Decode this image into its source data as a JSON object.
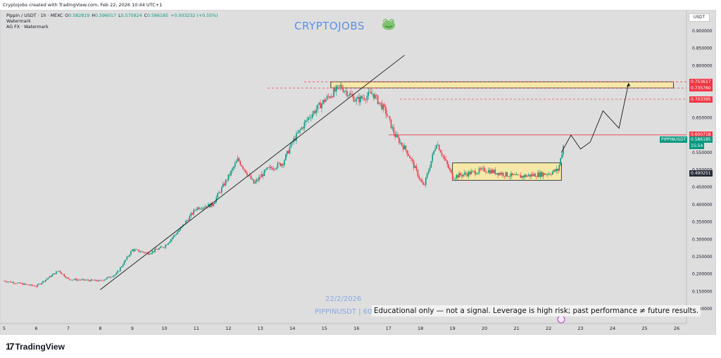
{
  "header": {
    "text": "Cryptojobs created with TradingView.com, Feb 22, 2026 10:44 UTC+1"
  },
  "legend": {
    "symbol": "Pippin / USDT · 1h · MEXC",
    "open_label": "O",
    "open": "0.582819",
    "high_label": "H",
    "high": "0.596017",
    "low_label": "L",
    "low": "0.570924",
    "close_label": "C",
    "close": "0.586185",
    "change": "+0.003232 (+0.55%)",
    "line2": "Watermark",
    "line3": "AG FX · Watermark"
  },
  "overlay": {
    "title": "CRYPTOJOBS",
    "date": "22/2/2026",
    "pair": "PIPPINUSDT | 60",
    "note": "Educational only — not a signal. Leverage is high risk; past performance ≠ future results."
  },
  "price_axis": {
    "currency": "USDT",
    "ticks": [
      "0.900000",
      "0.850000",
      "0.800000",
      "0.750000",
      "0.700000",
      "0.650000",
      "0.600000",
      "0.550000",
      "0.500000",
      "0.450000",
      "0.400000",
      "0.350000",
      "0.300000",
      "0.250000",
      "0.200000",
      "0.150000",
      "0.100000"
    ],
    "tags": [
      {
        "text": "0.753617",
        "price": 0.7536,
        "color": "#f23645"
      },
      {
        "text": "0.735760",
        "price": 0.7358,
        "color": "#f23645"
      },
      {
        "text": "0.703395",
        "price": 0.7034,
        "color": "#f23645"
      },
      {
        "text": "0.600718",
        "price": 0.6007,
        "color": "#f23645"
      },
      {
        "text": "0.586185",
        "price": 0.5862,
        "color": "#089981",
        "sub": "15:54",
        "label": "PIPPINUSDT"
      },
      {
        "text": "0.490251",
        "price": 0.4903,
        "color": "#2a2e39"
      }
    ]
  },
  "time_axis": {
    "ticks": [
      "5",
      "6",
      "7",
      "8",
      "9",
      "10",
      "11",
      "12",
      "13",
      "14",
      "15",
      "16",
      "17",
      "18",
      "19",
      "20",
      "21",
      "22",
      "23",
      "24",
      "25",
      "26"
    ]
  },
  "footer": {
    "brand": "TradingView"
  },
  "colors": {
    "up": "#089981",
    "down": "#f23645",
    "zone": "#f5e8a8",
    "background": "#dedede"
  },
  "chart_data": {
    "type": "candlestick",
    "title": "Pippin / USDT · 1h · MEXC",
    "x_range": [
      "Feb 5, 2026",
      "Feb 26, 2026"
    ],
    "ylim": [
      0.08,
      0.92
    ],
    "grid": false,
    "price_path": [
      [
        "Feb 5",
        0.18
      ],
      [
        "Feb 6",
        0.165
      ],
      [
        "Feb 6.7",
        0.21
      ],
      [
        "Feb 7",
        0.185
      ],
      [
        "Feb 8",
        0.18
      ],
      [
        "Feb 8.5",
        0.2
      ],
      [
        "Feb 9",
        0.27
      ],
      [
        "Feb 9.5",
        0.26
      ],
      [
        "Feb 10",
        0.28
      ],
      [
        "Feb 10.5",
        0.33
      ],
      [
        "Feb 11",
        0.39
      ],
      [
        "Feb 11.5",
        0.4
      ],
      [
        "Feb 12",
        0.48
      ],
      [
        "Feb 12.3",
        0.53
      ],
      [
        "Feb 12.8",
        0.46
      ],
      [
        "Feb 13.2",
        0.5
      ],
      [
        "Feb 13.7",
        0.52
      ],
      [
        "Feb 14",
        0.58
      ],
      [
        "Feb 14.5",
        0.65
      ],
      [
        "Feb 15",
        0.7
      ],
      [
        "Feb 15.5",
        0.74
      ],
      [
        "Feb 16",
        0.7
      ],
      [
        "Feb 16.5",
        0.72
      ],
      [
        "Feb 16.9",
        0.67
      ],
      [
        "Feb 17.2",
        0.6
      ],
      [
        "Feb 17.6",
        0.55
      ],
      [
        "Feb 18.1",
        0.45
      ],
      [
        "Feb 18.5",
        0.58
      ],
      [
        "Feb 19",
        0.48
      ],
      [
        "Feb 20",
        0.5
      ],
      [
        "Feb 21",
        0.48
      ],
      [
        "Feb 22",
        0.49
      ],
      [
        "Feb 22.3",
        0.5
      ],
      [
        "Feb 22.5",
        0.586
      ]
    ],
    "levels": [
      {
        "name": "resistance-upper",
        "value": 0.753617
      },
      {
        "name": "resistance-lower",
        "value": 0.73576
      },
      {
        "name": "target",
        "value": 0.703395
      },
      {
        "name": "breakout",
        "value": 0.600718
      },
      {
        "name": "last",
        "value": 0.586185
      },
      {
        "name": "range-mid",
        "value": 0.490251
      }
    ],
    "zones": [
      {
        "name": "resistance-zone",
        "x": [
          "Feb 15.2",
          "Feb 25.9"
        ],
        "y": [
          0.7358,
          0.7536
        ]
      },
      {
        "name": "consolidation-box",
        "x": [
          "Feb 19",
          "Feb 22.4"
        ],
        "y": [
          0.47,
          0.52
        ]
      }
    ],
    "trendline": {
      "from": [
        "Feb 8",
        0.155
      ],
      "to": [
        "Feb 17.5",
        0.83
      ]
    },
    "projection": [
      [
        "Feb 22.4",
        0.55
      ],
      [
        "Feb 22.7",
        0.6
      ],
      [
        "Feb 23",
        0.56
      ],
      [
        "Feb 23.3",
        0.58
      ],
      [
        "Feb 23.7",
        0.67
      ],
      [
        "Feb 24.2",
        0.62
      ],
      [
        "Feb 24.5",
        0.75
      ]
    ]
  }
}
